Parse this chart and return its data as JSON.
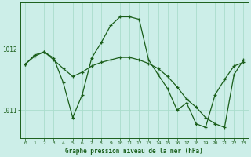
{
  "title": "Graphe pression niveau de la mer (hPa)",
  "background_color": "#cceee8",
  "grid_color": "#aaddcc",
  "line_color": "#1a5e1a",
  "marker_color": "#1a5e1a",
  "ylim": [
    1010.55,
    1012.75
  ],
  "yticks": [
    1011,
    1012
  ],
  "xlim": [
    -0.5,
    23.5
  ],
  "xticks": [
    0,
    1,
    2,
    3,
    4,
    5,
    6,
    7,
    8,
    9,
    10,
    11,
    12,
    13,
    14,
    15,
    16,
    17,
    18,
    19,
    20,
    21,
    22,
    23
  ],
  "series1_x": [
    0,
    1,
    2,
    3,
    4,
    5,
    6,
    7,
    8,
    9,
    10,
    11,
    12,
    13,
    14,
    15,
    16,
    17,
    18,
    19,
    20,
    21,
    22,
    23
  ],
  "series1_y": [
    1011.75,
    1011.9,
    1011.95,
    1011.85,
    1011.45,
    1010.88,
    1011.25,
    1011.85,
    1012.1,
    1012.38,
    1012.52,
    1012.52,
    1012.48,
    1011.82,
    1011.58,
    1011.35,
    1011.0,
    1011.12,
    1010.78,
    1010.72,
    1011.25,
    1011.5,
    1011.72,
    1011.78
  ],
  "series2_x": [
    0,
    1,
    2,
    3,
    4,
    5,
    6,
    7,
    8,
    9,
    10,
    11,
    12,
    13,
    14,
    15,
    16,
    17,
    18,
    19,
    20,
    21,
    22,
    23
  ],
  "series2_y": [
    1011.75,
    1011.88,
    1011.95,
    1011.82,
    1011.68,
    1011.55,
    1011.62,
    1011.72,
    1011.78,
    1011.82,
    1011.86,
    1011.86,
    1011.82,
    1011.76,
    1011.68,
    1011.55,
    1011.38,
    1011.18,
    1011.05,
    1010.88,
    1010.78,
    1010.72,
    1011.58,
    1011.82
  ]
}
